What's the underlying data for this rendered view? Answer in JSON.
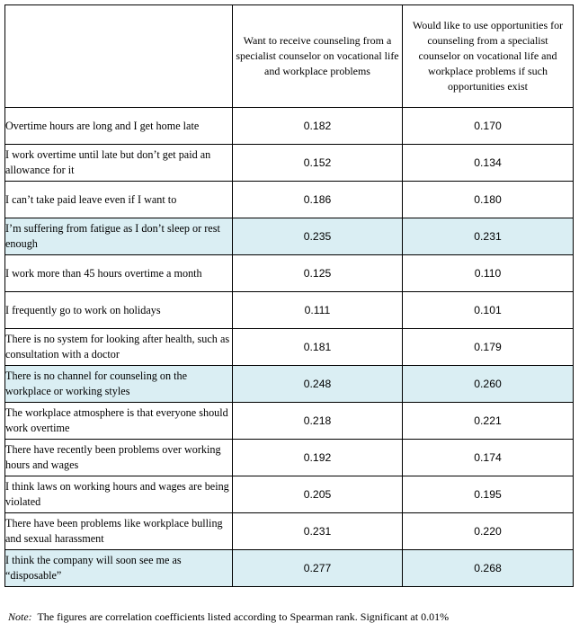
{
  "table": {
    "header": {
      "col1": "",
      "col2": "Want to receive counseling from a specialist counselor on vocational life and workplace problems",
      "col3": "Would like to use opportunities for counseling from a specialist counselor on vocational life and workplace problems if such opportunities exist"
    },
    "rows": [
      {
        "label": "Overtime hours are long and I get home late",
        "v1": "0.182",
        "v2": "0.170",
        "highlight": false
      },
      {
        "label": "I work overtime until late but don’t get paid an allowance for it",
        "v1": "0.152",
        "v2": "0.134",
        "highlight": false
      },
      {
        "label": "I can’t take paid leave even if I want to",
        "v1": "0.186",
        "v2": "0.180",
        "highlight": false
      },
      {
        "label": "I’m suffering from fatigue as I don’t sleep or rest enough",
        "v1": "0.235",
        "v2": "0.231",
        "highlight": true
      },
      {
        "label": "I work more than 45 hours overtime a month",
        "v1": "0.125",
        "v2": "0.110",
        "highlight": false
      },
      {
        "label": "I frequently go to work on holidays",
        "v1": "0.111",
        "v2": "0.101",
        "highlight": false
      },
      {
        "label": "There is no system for looking after health, such as consultation with a doctor",
        "v1": "0.181",
        "v2": "0.179",
        "highlight": false
      },
      {
        "label": "There is no channel for counseling on the workplace or working styles",
        "v1": "0.248",
        "v2": "0.260",
        "highlight": true
      },
      {
        "label": "The workplace atmosphere is that everyone should work overtime",
        "v1": "0.218",
        "v2": "0.221",
        "highlight": false
      },
      {
        "label": "There have recently been problems over working hours and wages",
        "v1": "0.192",
        "v2": "0.174",
        "highlight": false
      },
      {
        "label": "I think laws on working hours and wages are being violated",
        "v1": "0.205",
        "v2": "0.195",
        "highlight": false
      },
      {
        "label": "There have been problems like workplace bulling and sexual harassment",
        "v1": "0.231",
        "v2": "0.220",
        "highlight": false
      },
      {
        "label": "I think the company will soon see me as “disposable”",
        "v1": "0.277",
        "v2": "0.268",
        "highlight": true
      }
    ],
    "highlight_color": "#daeef3"
  },
  "note": {
    "prefix": "Note:",
    "text": "The figures are correlation coefficients listed according to Spearman rank. Significant at 0.01%"
  }
}
